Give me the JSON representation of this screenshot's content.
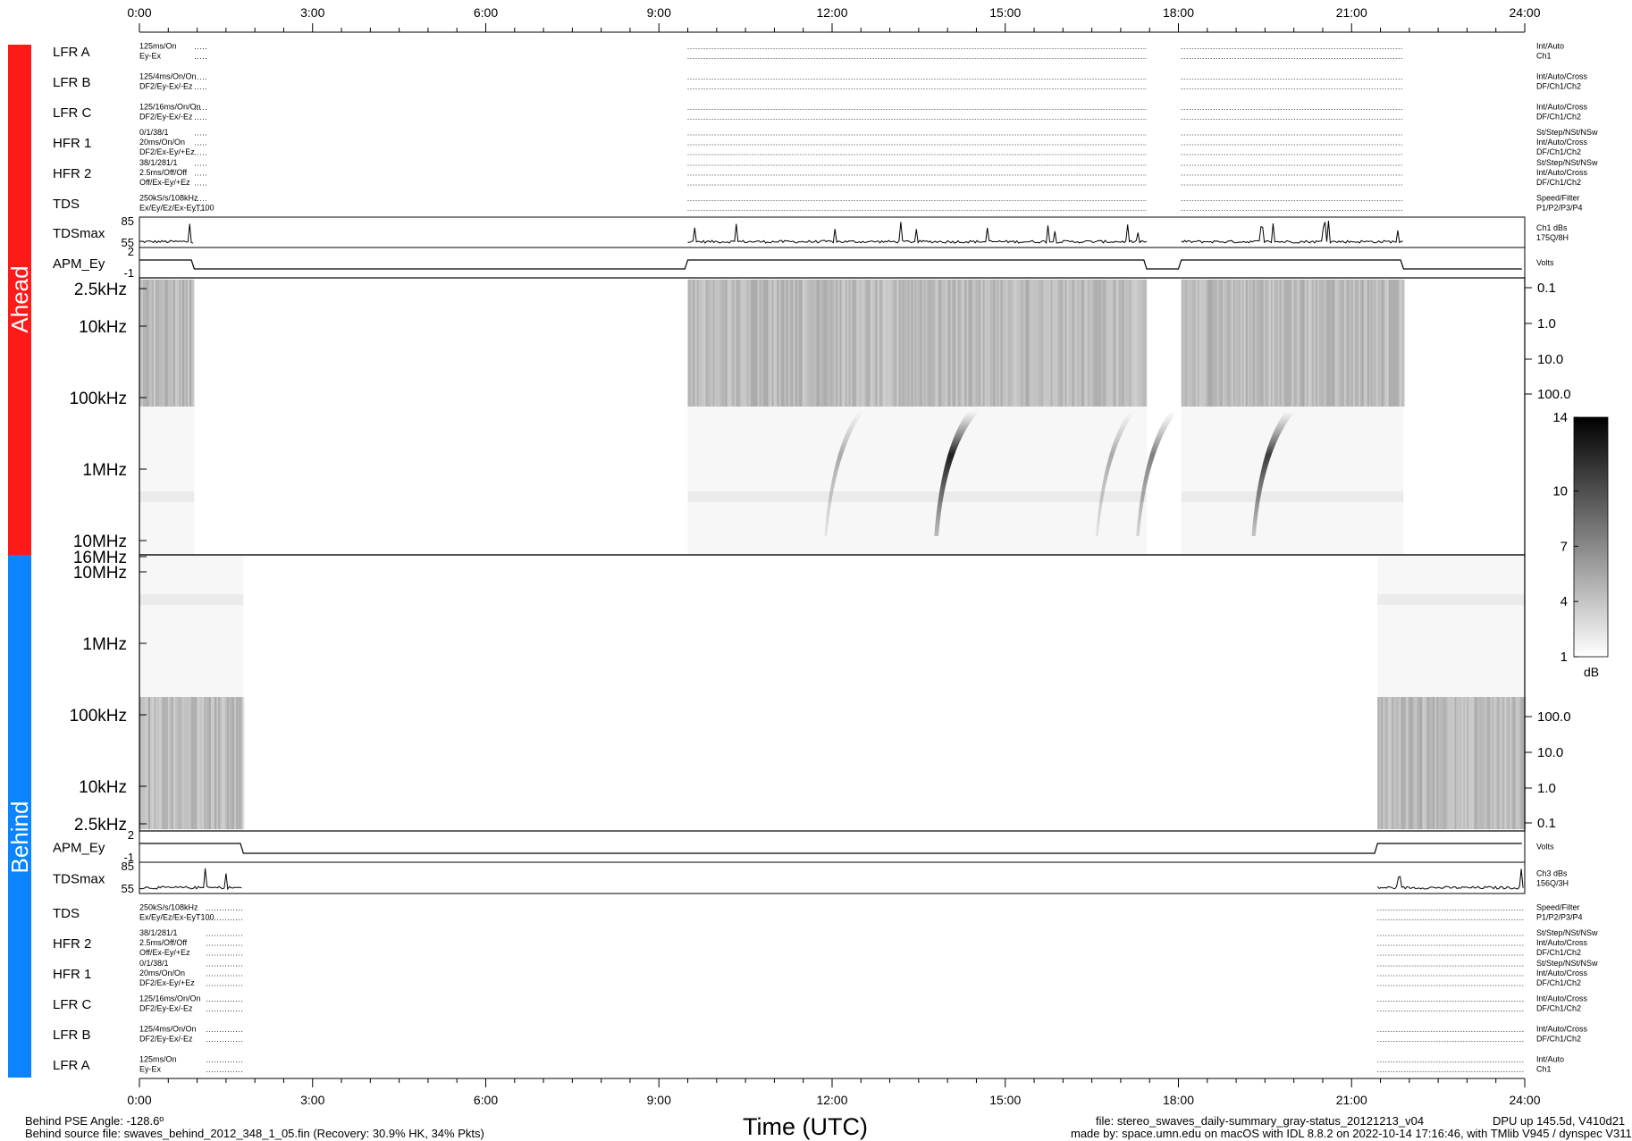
{
  "chart_data": {
    "type": "heatmap",
    "title": "",
    "xlabel": "Time (UTC)",
    "xlim": [
      "0:00",
      "24:00"
    ],
    "x_ticks": [
      "0:00",
      "3:00",
      "6:00",
      "9:00",
      "12:00",
      "15:00",
      "18:00",
      "21:00",
      "24:00"
    ],
    "ahead": {
      "label": "Ahead",
      "color": "#ff1a1a",
      "status_rows": [
        {
          "name": "LFR A",
          "left": [
            "125ms/On",
            "Ey-Ex"
          ],
          "right": [
            "Int/Auto",
            "Ch1"
          ]
        },
        {
          "name": "LFR B",
          "left": [
            "125/4ms/On/On",
            "DF2/Ey-Ex/-Ez"
          ],
          "right": [
            "Int/Auto/Cross",
            "DF/Ch1/Ch2"
          ]
        },
        {
          "name": "LFR C",
          "left": [
            "125/16ms/On/On",
            "DF2/Ey-Ex/-Ez"
          ],
          "right": [
            "Int/Auto/Cross",
            "DF/Ch1/Ch2"
          ]
        },
        {
          "name": "HFR 1",
          "left": [
            "0/1/38/1",
            "20ms/On/On",
            "DF2/Ex-Ey/+Ez"
          ],
          "right": [
            "St/Step/NSt/NSw",
            "Int/Auto/Cross",
            "DF/Ch1/Ch2"
          ]
        },
        {
          "name": "HFR 2",
          "left": [
            "38/1/281/1",
            "2.5ms/Off/Off",
            "Off/Ex-Ey/+Ez"
          ],
          "right": [
            "St/Step/NSt/NSw",
            "Int/Auto/Cross",
            "DF/Ch1/Ch2"
          ]
        },
        {
          "name": "TDS",
          "left": [
            "250kS/s/108kHz",
            "Ex/Ey/Ez/Ex-EyT100"
          ],
          "right": [
            "Speed/Filter",
            "P1/P2/P3/P4"
          ]
        }
      ],
      "tdsmax": {
        "label": "TDSmax",
        "ticks": [
          "85",
          "55"
        ],
        "right": [
          "Ch1 dBs",
          "175Q/8H"
        ]
      },
      "apm": {
        "label": "APM_Ey",
        "ticks": [
          "2",
          "-1"
        ],
        "right": [
          "Volts"
        ]
      },
      "freq_ticks": [
        "2.5kHz",
        "10kHz",
        "100kHz",
        "1MHz",
        "10MHz",
        "16MHz"
      ],
      "right_ticks": [
        "0.1",
        "1.0",
        "10.0",
        "100.0"
      ],
      "data_intervals_hours": [
        [
          0.0,
          0.95
        ],
        [
          9.5,
          17.45
        ],
        [
          18.05,
          21.9
        ]
      ],
      "type_iii_bursts": [
        {
          "time": 13.8,
          "intensity_db": 14
        },
        {
          "time": 19.3,
          "intensity_db": 12
        },
        {
          "time": 11.9,
          "intensity_db": 5
        },
        {
          "time": 16.6,
          "intensity_db": 5
        },
        {
          "time": 17.3,
          "intensity_db": 8
        }
      ]
    },
    "behind": {
      "label": "Behind",
      "color": "#0a84ff",
      "status_rows": [
        {
          "name": "TDS",
          "left": [
            "250kS/s/108kHz",
            "Ex/Ey/Ez/Ex-EyT100"
          ],
          "right": [
            "Speed/Filter",
            "P1/P2/P3/P4"
          ]
        },
        {
          "name": "HFR 2",
          "left": [
            "38/1/281/1",
            "2.5ms/Off/Off",
            "Off/Ex-Ey/+Ez"
          ],
          "right": [
            "St/Step/NSt/NSw",
            "Int/Auto/Cross",
            "DF/Ch1/Ch2"
          ]
        },
        {
          "name": "HFR 1",
          "left": [
            "0/1/38/1",
            "20ms/On/On",
            "DF2/Ex-Ey/+Ez"
          ],
          "right": [
            "St/Step/NSt/NSw",
            "Int/Auto/Cross",
            "DF/Ch1/Ch2"
          ]
        },
        {
          "name": "LFR C",
          "left": [
            "125/16ms/On/On",
            "DF2/Ey-Ex/-Ez"
          ],
          "right": [
            "Int/Auto/Cross",
            "DF/Ch1/Ch2"
          ]
        },
        {
          "name": "LFR B",
          "left": [
            "125/4ms/On/On",
            "DF2/Ey-Ex/-Ez"
          ],
          "right": [
            "Int/Auto/Cross",
            "DF/Ch1/Ch2"
          ]
        },
        {
          "name": "LFR A",
          "left": [
            "125ms/On",
            "Ey-Ex"
          ],
          "right": [
            "Int/Auto",
            "Ch1"
          ]
        }
      ],
      "tdsmax": {
        "label": "TDSmax",
        "ticks": [
          "85",
          "55"
        ],
        "right": [
          "Ch3 dBs",
          "156Q/3H"
        ]
      },
      "apm": {
        "label": "APM_Ey",
        "ticks": [
          "2",
          "-1"
        ],
        "right": [
          "Volts"
        ]
      },
      "freq_ticks": [
        "10MHz",
        "1MHz",
        "100kHz",
        "10kHz",
        "2.5kHz"
      ],
      "right_ticks": [
        "100.0",
        "10.0",
        "1.0",
        "0.1"
      ],
      "data_intervals_hours": [
        [
          0.0,
          1.8
        ],
        [
          21.45,
          24.0
        ]
      ]
    },
    "colorbar": {
      "ticks": [
        "14",
        "10",
        "7",
        "4",
        "1"
      ],
      "unit": "dB",
      "range": [
        1,
        14
      ]
    }
  },
  "footer": {
    "time_label": "Time (UTC)",
    "left_line1": "Behind PSE Angle: -128.6º",
    "left_line2": "Behind source file: swaves_behind_2012_348_1_05.fin (Recovery: 30.9% HK,  34% Pkts)",
    "mid_line1": "file: stereo_swaves_daily-summary_gray-status_20121213_v04",
    "mid_line2": "made by: space.umn.edu on macOS with IDL 8.8.2 on 2022-10-14 17:16:46, with TMlib V945 / dynspec V311",
    "right_line1": "DPU up 145.5d, V410d21"
  }
}
